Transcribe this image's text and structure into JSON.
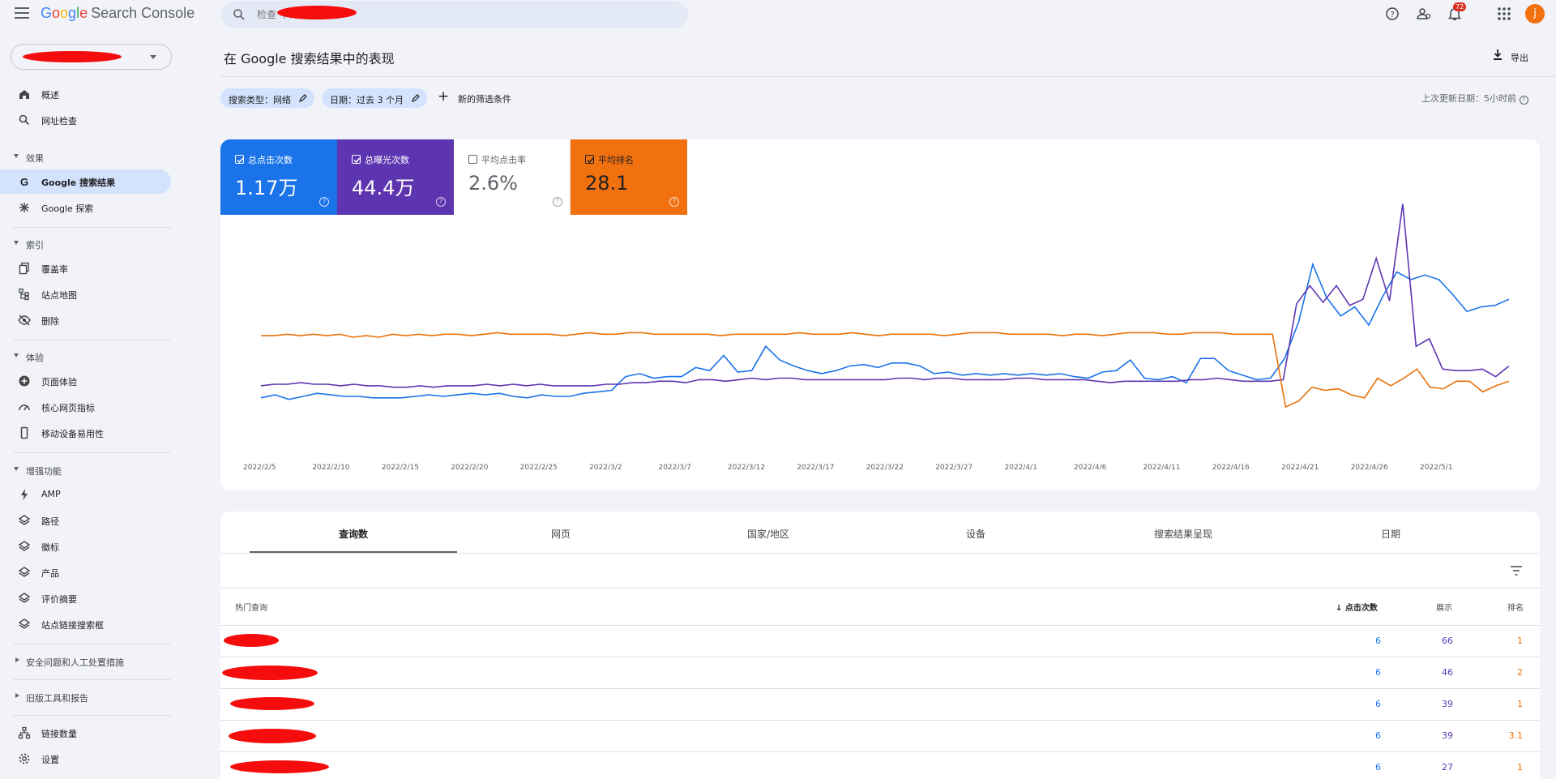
{
  "app": {
    "title_parts": [
      "G",
      "o",
      "o",
      "g",
      "l",
      "e"
    ],
    "product": "Search Console"
  },
  "search": {
    "placeholder": "检查 中的任何网址"
  },
  "topbar": {
    "notif_count": "72",
    "avatar_letter": "j"
  },
  "sidebar": {
    "items": [
      {
        "label": "概述",
        "icon": "home-icon"
      },
      {
        "label": "网址检查",
        "icon": "search-icon"
      },
      {
        "label": "Google 搜索结果",
        "icon": "google-g-icon"
      },
      {
        "label": "Google 探索",
        "icon": "asterisk-icon"
      },
      {
        "label": "覆盖率",
        "icon": "copy-icon"
      },
      {
        "label": "站点地图",
        "icon": "sitemap-icon"
      },
      {
        "label": "删除",
        "icon": "eye-off-icon"
      },
      {
        "label": "页面体验",
        "icon": "plus-circle-icon"
      },
      {
        "label": "核心网页指标",
        "icon": "speed-icon"
      },
      {
        "label": "移动设备易用性",
        "icon": "phone-icon"
      },
      {
        "label": "AMP",
        "icon": "bolt-icon"
      },
      {
        "label": "路径",
        "icon": "layers-icon"
      },
      {
        "label": "徽标",
        "icon": "layers-icon"
      },
      {
        "label": "产品",
        "icon": "layers-icon"
      },
      {
        "label": "评价摘要",
        "icon": "layers-icon"
      },
      {
        "label": "站点链接搜索框",
        "icon": "layers-icon"
      },
      {
        "label": "链接数量",
        "icon": "network-icon"
      },
      {
        "label": "设置",
        "icon": "gear-icon"
      }
    ],
    "sections": [
      "效果",
      "索引",
      "体验",
      "增强功能",
      "安全问题和人工处置措施",
      "旧版工具和报告"
    ]
  },
  "main": {
    "title": "在 Google 搜索结果中的表现",
    "export_label": "导出",
    "filters": [
      "搜索类型：网络",
      "日期：过去 3 个月"
    ],
    "add_filter": "新的筛选条件",
    "last_updated": "上次更新日期：5小时前"
  },
  "metrics": [
    {
      "label": "总点击次数",
      "value": "1.17万",
      "checked": true,
      "color": "#1a73e8"
    },
    {
      "label": "总曝光次数",
      "value": "44.4万",
      "checked": true,
      "color": "#5e35b1"
    },
    {
      "label": "平均点击率",
      "value": "2.6%",
      "checked": false,
      "color": "#ffffff"
    },
    {
      "label": "平均排名",
      "value": "28.1",
      "checked": true,
      "color": "#e8710a"
    }
  ],
  "chart_data": {
    "type": "line",
    "x_ticks": [
      "2022/2/5",
      "2022/2/10",
      "2022/2/15",
      "2022/2/20",
      "2022/2/25",
      "2022/3/2",
      "2022/3/7",
      "2022/3/12",
      "2022/3/17",
      "2022/3/22",
      "2022/3/27",
      "2022/4/1",
      "2022/4/6",
      "2022/4/11",
      "2022/4/16",
      "2022/4/21",
      "2022/4/26",
      "2022/5/1"
    ],
    "grid": false,
    "series": [
      {
        "name": "总点击次数",
        "color": "#1a73e8",
        "values": [
          22,
          24,
          21,
          23,
          25,
          24,
          23,
          23,
          22,
          22,
          22,
          23,
          24,
          23,
          24,
          25,
          24,
          25,
          23,
          22,
          24,
          23,
          23,
          25,
          26,
          27,
          36,
          38,
          35,
          36,
          36,
          42,
          40,
          50,
          39,
          40,
          56,
          47,
          43,
          40,
          38,
          40,
          43,
          44,
          42,
          45,
          45,
          43,
          38,
          39,
          37,
          38,
          37,
          38,
          37,
          38,
          37,
          38,
          36,
          35,
          39,
          40,
          47,
          35,
          34,
          36,
          32,
          48,
          48,
          40,
          37,
          34,
          35,
          48,
          72,
          110,
          88,
          76,
          82,
          70,
          89,
          105,
          100,
          103,
          100,
          90,
          79,
          82,
          83,
          87
        ]
      },
      {
        "name": "总曝光次数",
        "color": "#5e35b1",
        "values": [
          30,
          31,
          31,
          32,
          31,
          31,
          30,
          31,
          30,
          30,
          29,
          29,
          30,
          29,
          30,
          30,
          30,
          31,
          30,
          31,
          30,
          31,
          30,
          30,
          30,
          30,
          31,
          31,
          32,
          32,
          33,
          33,
          32,
          34,
          34,
          33,
          34,
          35,
          34,
          35,
          35,
          34,
          34,
          34,
          34,
          34,
          34,
          34,
          35,
          35,
          34,
          35,
          35,
          34,
          34,
          34,
          34,
          35,
          35,
          34,
          34,
          34,
          34,
          33,
          32,
          33,
          33,
          33,
          33,
          33,
          34,
          34,
          35,
          34,
          33,
          33,
          33,
          34,
          84,
          96,
          85,
          96,
          83,
          87,
          114,
          86,
          150,
          56,
          61,
          41,
          40,
          40,
          41,
          36,
          43
        ]
      },
      {
        "name": "平均排名",
        "color": "#e8710a",
        "values": [
          63,
          63,
          64,
          63,
          64,
          63,
          64,
          62,
          63,
          62,
          64,
          63,
          64,
          63,
          64,
          64,
          63,
          64,
          65,
          64,
          64,
          64,
          64,
          63,
          64,
          65,
          64,
          64,
          65,
          65,
          64,
          64,
          64,
          64,
          64,
          63,
          64,
          64,
          64,
          64,
          64,
          65,
          64,
          64,
          64,
          65,
          64,
          63,
          64,
          64,
          64,
          64,
          63,
          64,
          65,
          65,
          65,
          64,
          64,
          64,
          64,
          63,
          64,
          64,
          63,
          64,
          65,
          65,
          65,
          64,
          64,
          65,
          65,
          65,
          64,
          64,
          64,
          64,
          16,
          20,
          29,
          27,
          28,
          24,
          22,
          35,
          30,
          35,
          41,
          29,
          28,
          33,
          33,
          26,
          30,
          33
        ]
      }
    ]
  },
  "table": {
    "tabs": [
      "查询数",
      "网页",
      "国家/地区",
      "设备",
      "搜索结果呈现",
      "日期"
    ],
    "headers": {
      "query": "热门查询",
      "clicks": "点击次数",
      "impressions": "展示",
      "position": "排名"
    },
    "rows": [
      {
        "clicks": "6",
        "impressions": "66",
        "position": "1"
      },
      {
        "clicks": "6",
        "impressions": "46",
        "position": "2"
      },
      {
        "clicks": "6",
        "impressions": "39",
        "position": "1"
      },
      {
        "clicks": "6",
        "impressions": "39",
        "position": "3.1"
      },
      {
        "clicks": "6",
        "impressions": "27",
        "position": "1"
      }
    ]
  }
}
